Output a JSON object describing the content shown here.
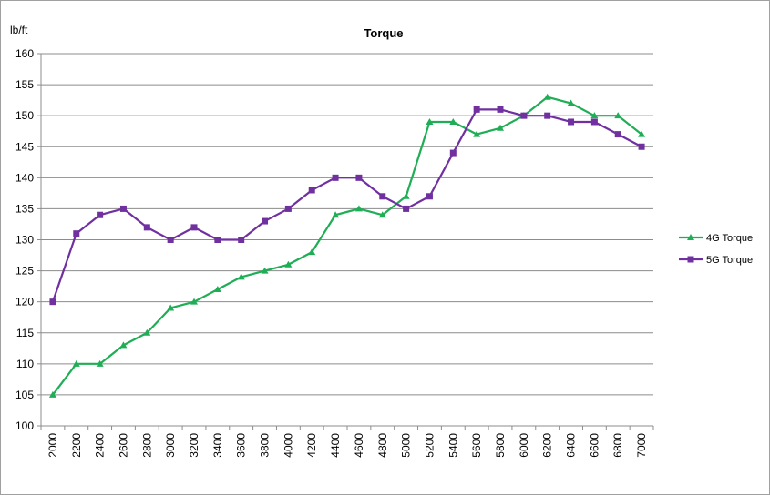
{
  "chart_data": {
    "type": "line",
    "title": "Torque",
    "ylabel": "lb/ft",
    "xlabel": "",
    "ylim": [
      100,
      160
    ],
    "ytick_step": 5,
    "grid": "horizontal",
    "legend_position": "right",
    "categories": [
      "2000",
      "2200",
      "2400",
      "2600",
      "2800",
      "3000",
      "3200",
      "3400",
      "3600",
      "3800",
      "4000",
      "4200",
      "4400",
      "4600",
      "4800",
      "5000",
      "5200",
      "5400",
      "5600",
      "5800",
      "6000",
      "6200",
      "6400",
      "6600",
      "6800",
      "7000"
    ],
    "series": [
      {
        "name": "4G Torque",
        "color": "#1fae55",
        "marker": "triangle",
        "values": [
          105,
          110,
          110,
          113,
          115,
          119,
          120,
          122,
          124,
          125,
          126,
          128,
          134,
          135,
          134,
          137,
          149,
          149,
          147,
          148,
          150,
          153,
          152,
          150,
          150,
          147
        ]
      },
      {
        "name": "5G Torque",
        "color": "#7030a0",
        "marker": "square",
        "values": [
          120,
          131,
          134,
          135,
          132,
          130,
          132,
          130,
          130,
          133,
          135,
          138,
          140,
          140,
          137,
          135,
          137,
          144,
          151,
          151,
          150,
          150,
          149,
          149,
          147,
          145
        ]
      }
    ]
  }
}
